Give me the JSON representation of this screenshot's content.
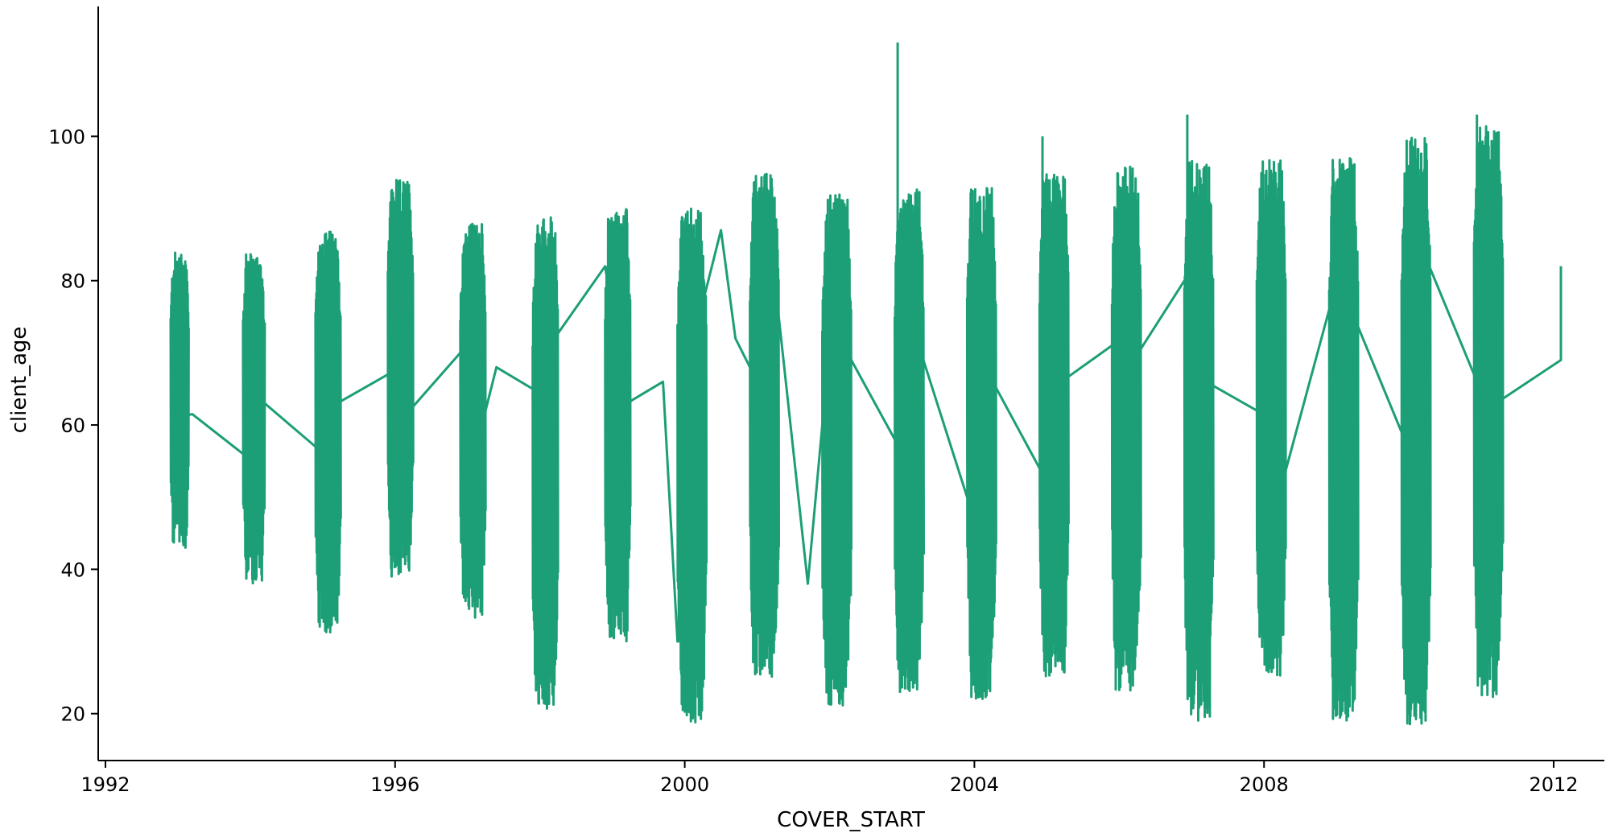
{
  "chart_data": {
    "type": "line",
    "title": "",
    "xlabel": "COVER_START",
    "ylabel": "client_age",
    "xlim": [
      1991.9,
      2012.7
    ],
    "ylim": [
      13.5,
      118
    ],
    "xticks": [
      "1992",
      "1996",
      "2000",
      "2004",
      "2008",
      "2012"
    ],
    "yticks": [
      "20",
      "40",
      "60",
      "80",
      "100"
    ],
    "grid": false,
    "legend": "none",
    "line_color": "#1c9e76",
    "summary_path": [
      [
        1992.9,
        61
      ],
      [
        1993.2,
        61.5
      ],
      [
        1993.9,
        56
      ],
      [
        1994.2,
        63
      ],
      [
        1994.9,
        57
      ],
      [
        1995.2,
        63
      ],
      [
        1995.9,
        67
      ],
      [
        1996.2,
        62
      ],
      [
        1996.9,
        70
      ],
      [
        1997.1,
        56
      ],
      [
        1997.4,
        68
      ],
      [
        1997.9,
        65
      ],
      [
        1998.2,
        72
      ],
      [
        1998.9,
        82
      ],
      [
        1999.2,
        63
      ],
      [
        1999.7,
        66
      ],
      [
        1999.9,
        30
      ],
      [
        2000.2,
        75
      ],
      [
        2000.5,
        87
      ],
      [
        2000.7,
        72
      ],
      [
        2000.9,
        68
      ],
      [
        2001.2,
        84
      ],
      [
        2001.7,
        38
      ],
      [
        2002.0,
        71
      ],
      [
        2002.3,
        69
      ],
      [
        2002.9,
        58
      ],
      [
        2003.2,
        72
      ],
      [
        2003.9,
        50
      ],
      [
        2004.2,
        67
      ],
      [
        2004.9,
        54
      ],
      [
        2005.2,
        66
      ],
      [
        2005.9,
        71
      ],
      [
        2006.2,
        69
      ],
      [
        2006.9,
        80
      ],
      [
        2007.2,
        66
      ],
      [
        2007.9,
        62
      ],
      [
        2008.2,
        50
      ],
      [
        2008.9,
        76
      ],
      [
        2009.2,
        76
      ],
      [
        2009.9,
        59
      ],
      [
        2010.2,
        84
      ],
      [
        2010.9,
        67
      ],
      [
        2011.2,
        63
      ],
      [
        2012.1,
        69
      ],
      [
        2012.1,
        82
      ]
    ],
    "clusters": [
      {
        "year": 1992.9,
        "width": 0.25,
        "min": 43,
        "max": 84,
        "peak": 84
      },
      {
        "year": 1993.9,
        "width": 0.3,
        "min": 38,
        "max": 84,
        "peak": 84
      },
      {
        "year": 1994.9,
        "width": 0.35,
        "min": 31,
        "max": 87,
        "peak": 87
      },
      {
        "year": 1995.9,
        "width": 0.35,
        "min": 39,
        "max": 94,
        "peak": 94
      },
      {
        "year": 1996.9,
        "width": 0.35,
        "min": 33,
        "max": 88,
        "peak": 88
      },
      {
        "year": 1997.9,
        "width": 0.35,
        "min": 20,
        "max": 89,
        "peak": 89
      },
      {
        "year": 1998.9,
        "width": 0.35,
        "min": 30,
        "max": 90,
        "peak": 90
      },
      {
        "year": 1999.9,
        "width": 0.4,
        "min": 18,
        "max": 90,
        "peak": 90
      },
      {
        "year": 2000.9,
        "width": 0.4,
        "min": 25,
        "max": 95,
        "peak": 95
      },
      {
        "year": 2001.9,
        "width": 0.4,
        "min": 20,
        "max": 92,
        "peak": 92
      },
      {
        "year": 2002.9,
        "width": 0.4,
        "min": 23,
        "max": 93,
        "peak": 113
      },
      {
        "year": 2003.9,
        "width": 0.4,
        "min": 22,
        "max": 93,
        "peak": 93
      },
      {
        "year": 2004.9,
        "width": 0.4,
        "min": 25,
        "max": 95,
        "peak": 100
      },
      {
        "year": 2005.9,
        "width": 0.4,
        "min": 23,
        "max": 96,
        "peak": 96
      },
      {
        "year": 2006.9,
        "width": 0.4,
        "min": 19,
        "max": 97,
        "peak": 103
      },
      {
        "year": 2007.9,
        "width": 0.4,
        "min": 25,
        "max": 97,
        "peak": 97
      },
      {
        "year": 2008.9,
        "width": 0.4,
        "min": 19,
        "max": 97,
        "peak": 97
      },
      {
        "year": 2009.9,
        "width": 0.4,
        "min": 18,
        "max": 100,
        "peak": 100
      },
      {
        "year": 2010.9,
        "width": 0.4,
        "min": 22,
        "max": 102,
        "peak": 103
      }
    ]
  }
}
